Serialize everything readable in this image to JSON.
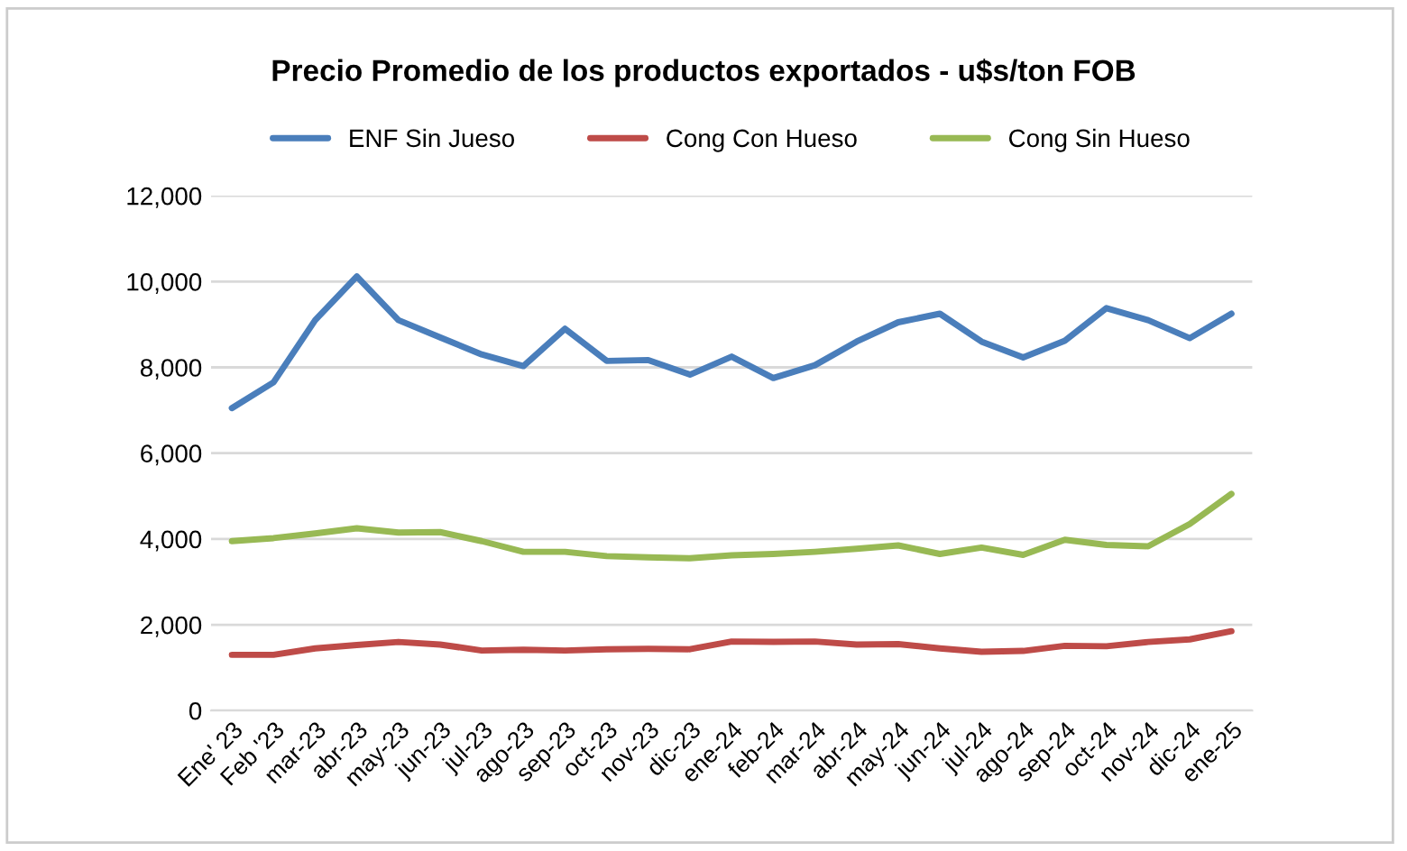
{
  "chart_data": {
    "type": "line",
    "title": "Precio Promedio de los productos exportados - u$s/ton FOB",
    "categories": [
      "Ene' 23",
      "Feb '23",
      "mar-23",
      "abr-23",
      "may-23",
      "jun-23",
      "jul-23",
      "ago-23",
      "sep-23",
      "oct-23",
      "nov-23",
      "dic-23",
      "ene-24",
      "feb-24",
      "mar-24",
      "abr-24",
      "may-24",
      "jun-24",
      "jul-24",
      "ago-24",
      "sep-24",
      "oct-24",
      "nov-24",
      "dic-24",
      "ene-25"
    ],
    "series": [
      {
        "name": "ENF Sin Jueso",
        "color": "#4a7ebb",
        "values": [
          7050,
          7650,
          9100,
          10120,
          9100,
          8700,
          8300,
          8030,
          8900,
          8150,
          8170,
          7830,
          8250,
          7750,
          8050,
          8600,
          9050,
          9250,
          8600,
          8230,
          8620,
          9380,
          9100,
          8680,
          9250
        ]
      },
      {
        "name": "Cong Con Hueso",
        "color": "#be4b48",
        "values": [
          1300,
          1300,
          1450,
          1530,
          1600,
          1540,
          1400,
          1420,
          1400,
          1430,
          1440,
          1430,
          1610,
          1600,
          1610,
          1540,
          1550,
          1450,
          1370,
          1390,
          1510,
          1500,
          1600,
          1660,
          1850
        ]
      },
      {
        "name": "Cong Sin Hueso",
        "color": "#98b954",
        "values": [
          3950,
          4020,
          4130,
          4250,
          4150,
          4160,
          3950,
          3700,
          3700,
          3600,
          3570,
          3550,
          3620,
          3650,
          3700,
          3770,
          3850,
          3650,
          3800,
          3630,
          3980,
          3860,
          3830,
          4350,
          5050
        ]
      }
    ],
    "ylim": [
      0,
      12000
    ],
    "yticks": [
      {
        "value": 0,
        "label": "0"
      },
      {
        "value": 2000,
        "label": "2,000"
      },
      {
        "value": 4000,
        "label": "4,000"
      },
      {
        "value": 6000,
        "label": "6,000"
      },
      {
        "value": 8000,
        "label": "8,000"
      },
      {
        "value": 10000,
        "label": "10,000"
      },
      {
        "value": 12000,
        "label": "12,000"
      }
    ],
    "grid": "y",
    "legend": "top",
    "marker": "none",
    "line_style": "solid"
  }
}
